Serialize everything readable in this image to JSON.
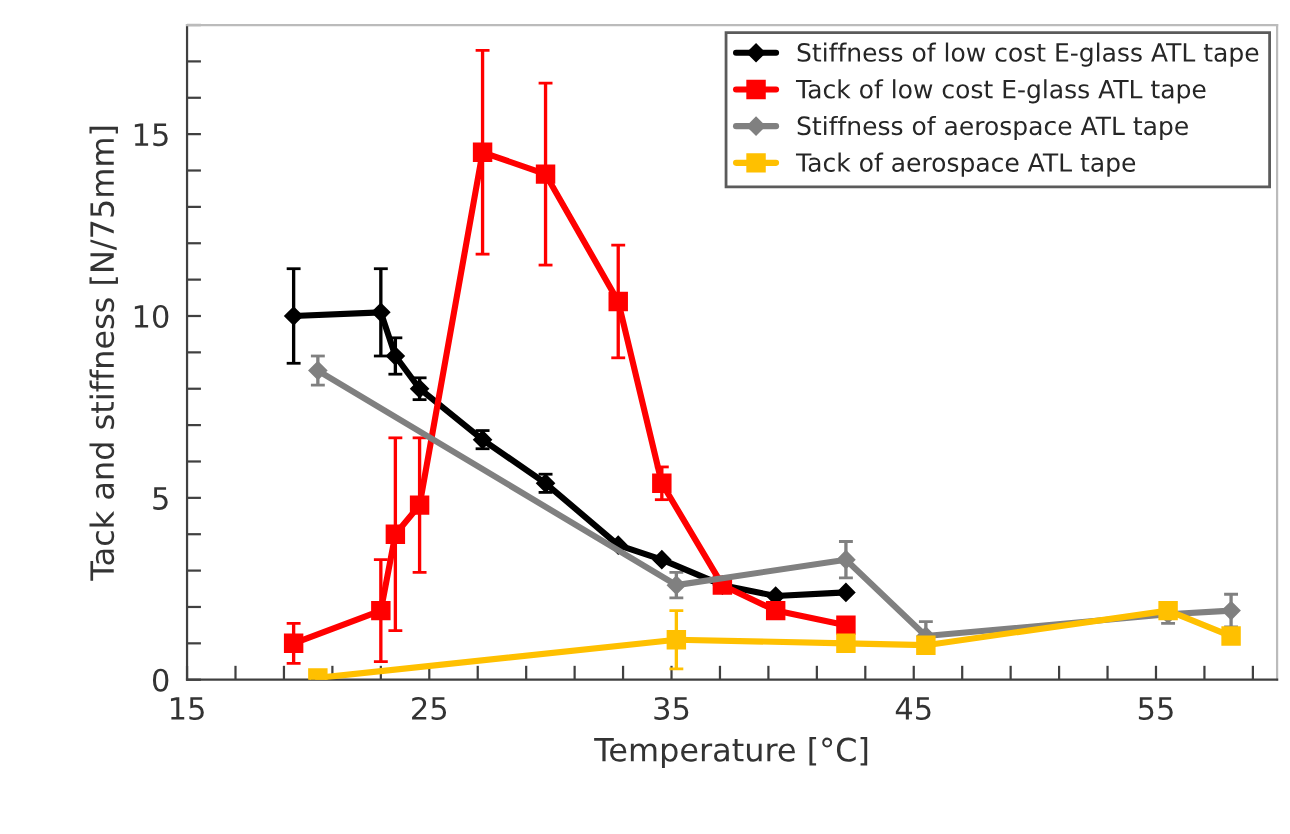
{
  "chart_data": {
    "type": "line",
    "xlabel": "Temperature [°C]",
    "ylabel": "Tack and stiffness [N/75mm]",
    "xlim": [
      15,
      60
    ],
    "ylim": [
      0,
      18
    ],
    "xticks": [
      15,
      {
        "value": 17,
        "label": null
      },
      {
        "value": 19,
        "label": null
      },
      {
        "value": 21,
        "label": null
      },
      {
        "value": 23,
        "label": null
      },
      25,
      {
        "value": 27,
        "label": null
      },
      {
        "value": 29,
        "label": null
      },
      {
        "value": 31,
        "label": null
      },
      {
        "value": 33,
        "label": null
      },
      35,
      {
        "value": 37,
        "label": null
      },
      {
        "value": 39,
        "label": null
      },
      {
        "value": 41,
        "label": null
      },
      {
        "value": 43,
        "label": null
      },
      45,
      {
        "value": 47,
        "label": null
      },
      {
        "value": 49,
        "label": null
      },
      {
        "value": 51,
        "label": null
      },
      {
        "value": 53,
        "label": null
      },
      55,
      {
        "value": 57,
        "label": null
      },
      {
        "value": 59,
        "label": null
      }
    ],
    "yticks": [
      0,
      {
        "value": 1,
        "label": null
      },
      {
        "value": 2,
        "label": null
      },
      {
        "value": 3,
        "label": null
      },
      {
        "value": 4,
        "label": null
      },
      5,
      {
        "value": 6,
        "label": null
      },
      {
        "value": 7,
        "label": null
      },
      {
        "value": 8,
        "label": null
      },
      {
        "value": 9,
        "label": null
      },
      10,
      {
        "value": 11,
        "label": null
      },
      {
        "value": 12,
        "label": null
      },
      {
        "value": 13,
        "label": null
      },
      {
        "value": 14,
        "label": null
      },
      15,
      {
        "value": 16,
        "label": null
      },
      {
        "value": 17,
        "label": null
      },
      {
        "value": 18,
        "label": null
      }
    ],
    "grid": false,
    "legend": "top right",
    "series": [
      {
        "name": "Stiffness of low cost E-glass ATL tape",
        "color": "#000000",
        "marker": "diamond",
        "x": [
          19.4,
          23.0,
          23.6,
          24.6,
          27.2,
          29.8,
          32.8,
          34.6,
          37.1,
          39.3,
          42.2
        ],
        "values": [
          10.0,
          10.1,
          8.9,
          8.0,
          6.6,
          5.4,
          3.7,
          3.3,
          2.6,
          2.3,
          2.4
        ],
        "errors": [
          1.3,
          1.2,
          0.5,
          0.3,
          0.25,
          0.25,
          null,
          null,
          null,
          null,
          null
        ]
      },
      {
        "name": "Tack of low cost E-glass ATL tape",
        "color": "#ff0000",
        "marker": "square",
        "x": [
          19.4,
          23.0,
          23.6,
          24.6,
          27.2,
          29.8,
          32.8,
          34.6,
          37.1,
          39.3,
          42.2
        ],
        "values": [
          1.0,
          1.9,
          4.0,
          4.8,
          14.5,
          13.9,
          10.4,
          5.4,
          2.6,
          1.9,
          1.5
        ],
        "errors": [
          0.55,
          1.4,
          2.65,
          1.85,
          2.8,
          2.5,
          1.55,
          0.45,
          null,
          null,
          null
        ]
      },
      {
        "name": "Stiffness of aerospace ATL tape",
        "color": "#808080",
        "marker": "diamond",
        "x": [
          20.4,
          35.2,
          42.2,
          45.5,
          55.5,
          58.1
        ],
        "values": [
          8.5,
          2.6,
          3.3,
          1.2,
          1.8,
          1.9
        ],
        "errors": [
          0.4,
          0.35,
          0.5,
          0.4,
          0.25,
          0.45
        ]
      },
      {
        "name": "Tack of aerospace ATL tape",
        "color": "#ffc000",
        "marker": "square",
        "x": [
          20.4,
          35.2,
          42.2,
          45.5,
          55.5,
          58.1
        ],
        "values": [
          0.05,
          1.1,
          1.0,
          0.95,
          1.9,
          1.2
        ],
        "errors": [
          0.15,
          0.8,
          null,
          0.15,
          0.15,
          null
        ]
      }
    ]
  }
}
